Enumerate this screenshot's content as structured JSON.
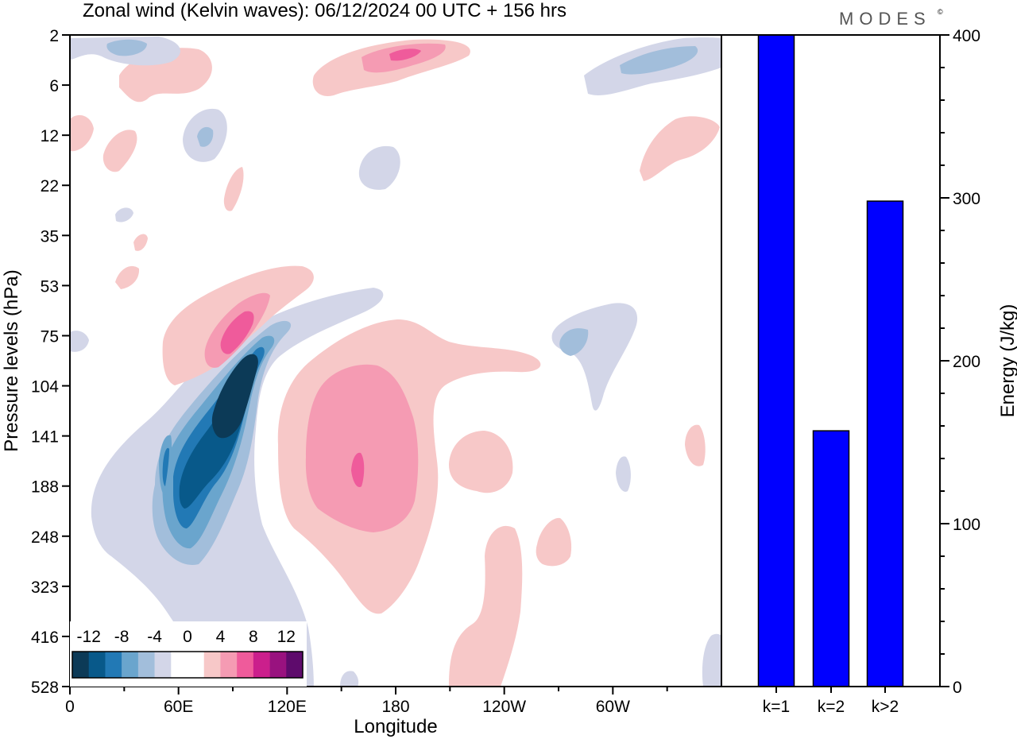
{
  "title": "Zonal wind (Kelvin waves):  06/12/2024  00 UTC  + 156 hrs",
  "brand": "MODES",
  "brand_mark": "©",
  "colors": {
    "neg_strong": "#0c3a57",
    "neg_1": "#08598a",
    "neg_2": "#2279b5",
    "neg_3": "#6aa5cd",
    "neg_4": "#a2bedb",
    "neg_5": "#d3d6e8",
    "zero": "#ffffff",
    "pos_1": "#f7c8c8",
    "pos_2": "#f59bb3",
    "pos_3": "#ef5b9b",
    "pos_4": "#cb1f8c",
    "pos_5": "#99127f",
    "pos_strong": "#5e0b6c",
    "bar": "#0000ff"
  },
  "chart_data": [
    {
      "type": "heatmap",
      "xlabel": "Longitude",
      "ylabel": "Pressure levels (hPa)",
      "x_ticks": [
        "0",
        "60E",
        "120E",
        "180",
        "120W",
        "60W"
      ],
      "x_tick_values": [
        0,
        60,
        120,
        180,
        240,
        300
      ],
      "xlim": [
        0,
        360
      ],
      "y_ticks": [
        "2",
        "6",
        "12",
        "22",
        "35",
        "53",
        "75",
        "104",
        "141",
        "188",
        "248",
        "323",
        "416",
        "528"
      ],
      "colorbar": {
        "labels": [
          "-12",
          "-8",
          "-4",
          "0",
          "4",
          "8",
          "12"
        ],
        "label_values": [
          -12,
          -8,
          -4,
          0,
          4,
          8,
          12
        ],
        "levels": [
          -14,
          -12,
          -10,
          -8,
          -6,
          -4,
          -2,
          0,
          2,
          4,
          6,
          8,
          10,
          12,
          14
        ],
        "colors": [
          "#0c3a57",
          "#08598a",
          "#2279b5",
          "#6aa5cd",
          "#a2bedb",
          "#d3d6e8",
          "#ffffff",
          "#ffffff",
          "#f7c8c8",
          "#f59bb3",
          "#ef5b9b",
          "#cb1f8c",
          "#99127f",
          "#5e0b6c"
        ]
      },
      "features": [
        {
          "sign": "neg",
          "lon": [
            50,
            110
          ],
          "level_range": [
            "75",
            "248"
          ],
          "min_value": -14
        },
        {
          "sign": "pos",
          "lon": [
            55,
            85
          ],
          "level_range": [
            "53",
            "104"
          ],
          "max_value": 8
        },
        {
          "sign": "pos",
          "lon": [
            115,
            200
          ],
          "level_range": [
            "75",
            "323"
          ],
          "max_value": 8
        },
        {
          "sign": "pos",
          "lon": [
            170,
            225
          ],
          "level_range": [
            "2",
            "6"
          ],
          "max_value": 8
        },
        {
          "sign": "neg",
          "lon": [
            285,
            360
          ],
          "level_range": [
            "2",
            "6"
          ],
          "min_value": -6
        }
      ]
    },
    {
      "type": "bar",
      "categories": [
        "k=1",
        "k=2",
        "k>2"
      ],
      "values": [
        400,
        157,
        298
      ],
      "ylabel": "Energy (J/kg)",
      "ylim": [
        0,
        400
      ],
      "y_ticks": [
        0,
        100,
        200,
        300,
        400
      ]
    }
  ]
}
